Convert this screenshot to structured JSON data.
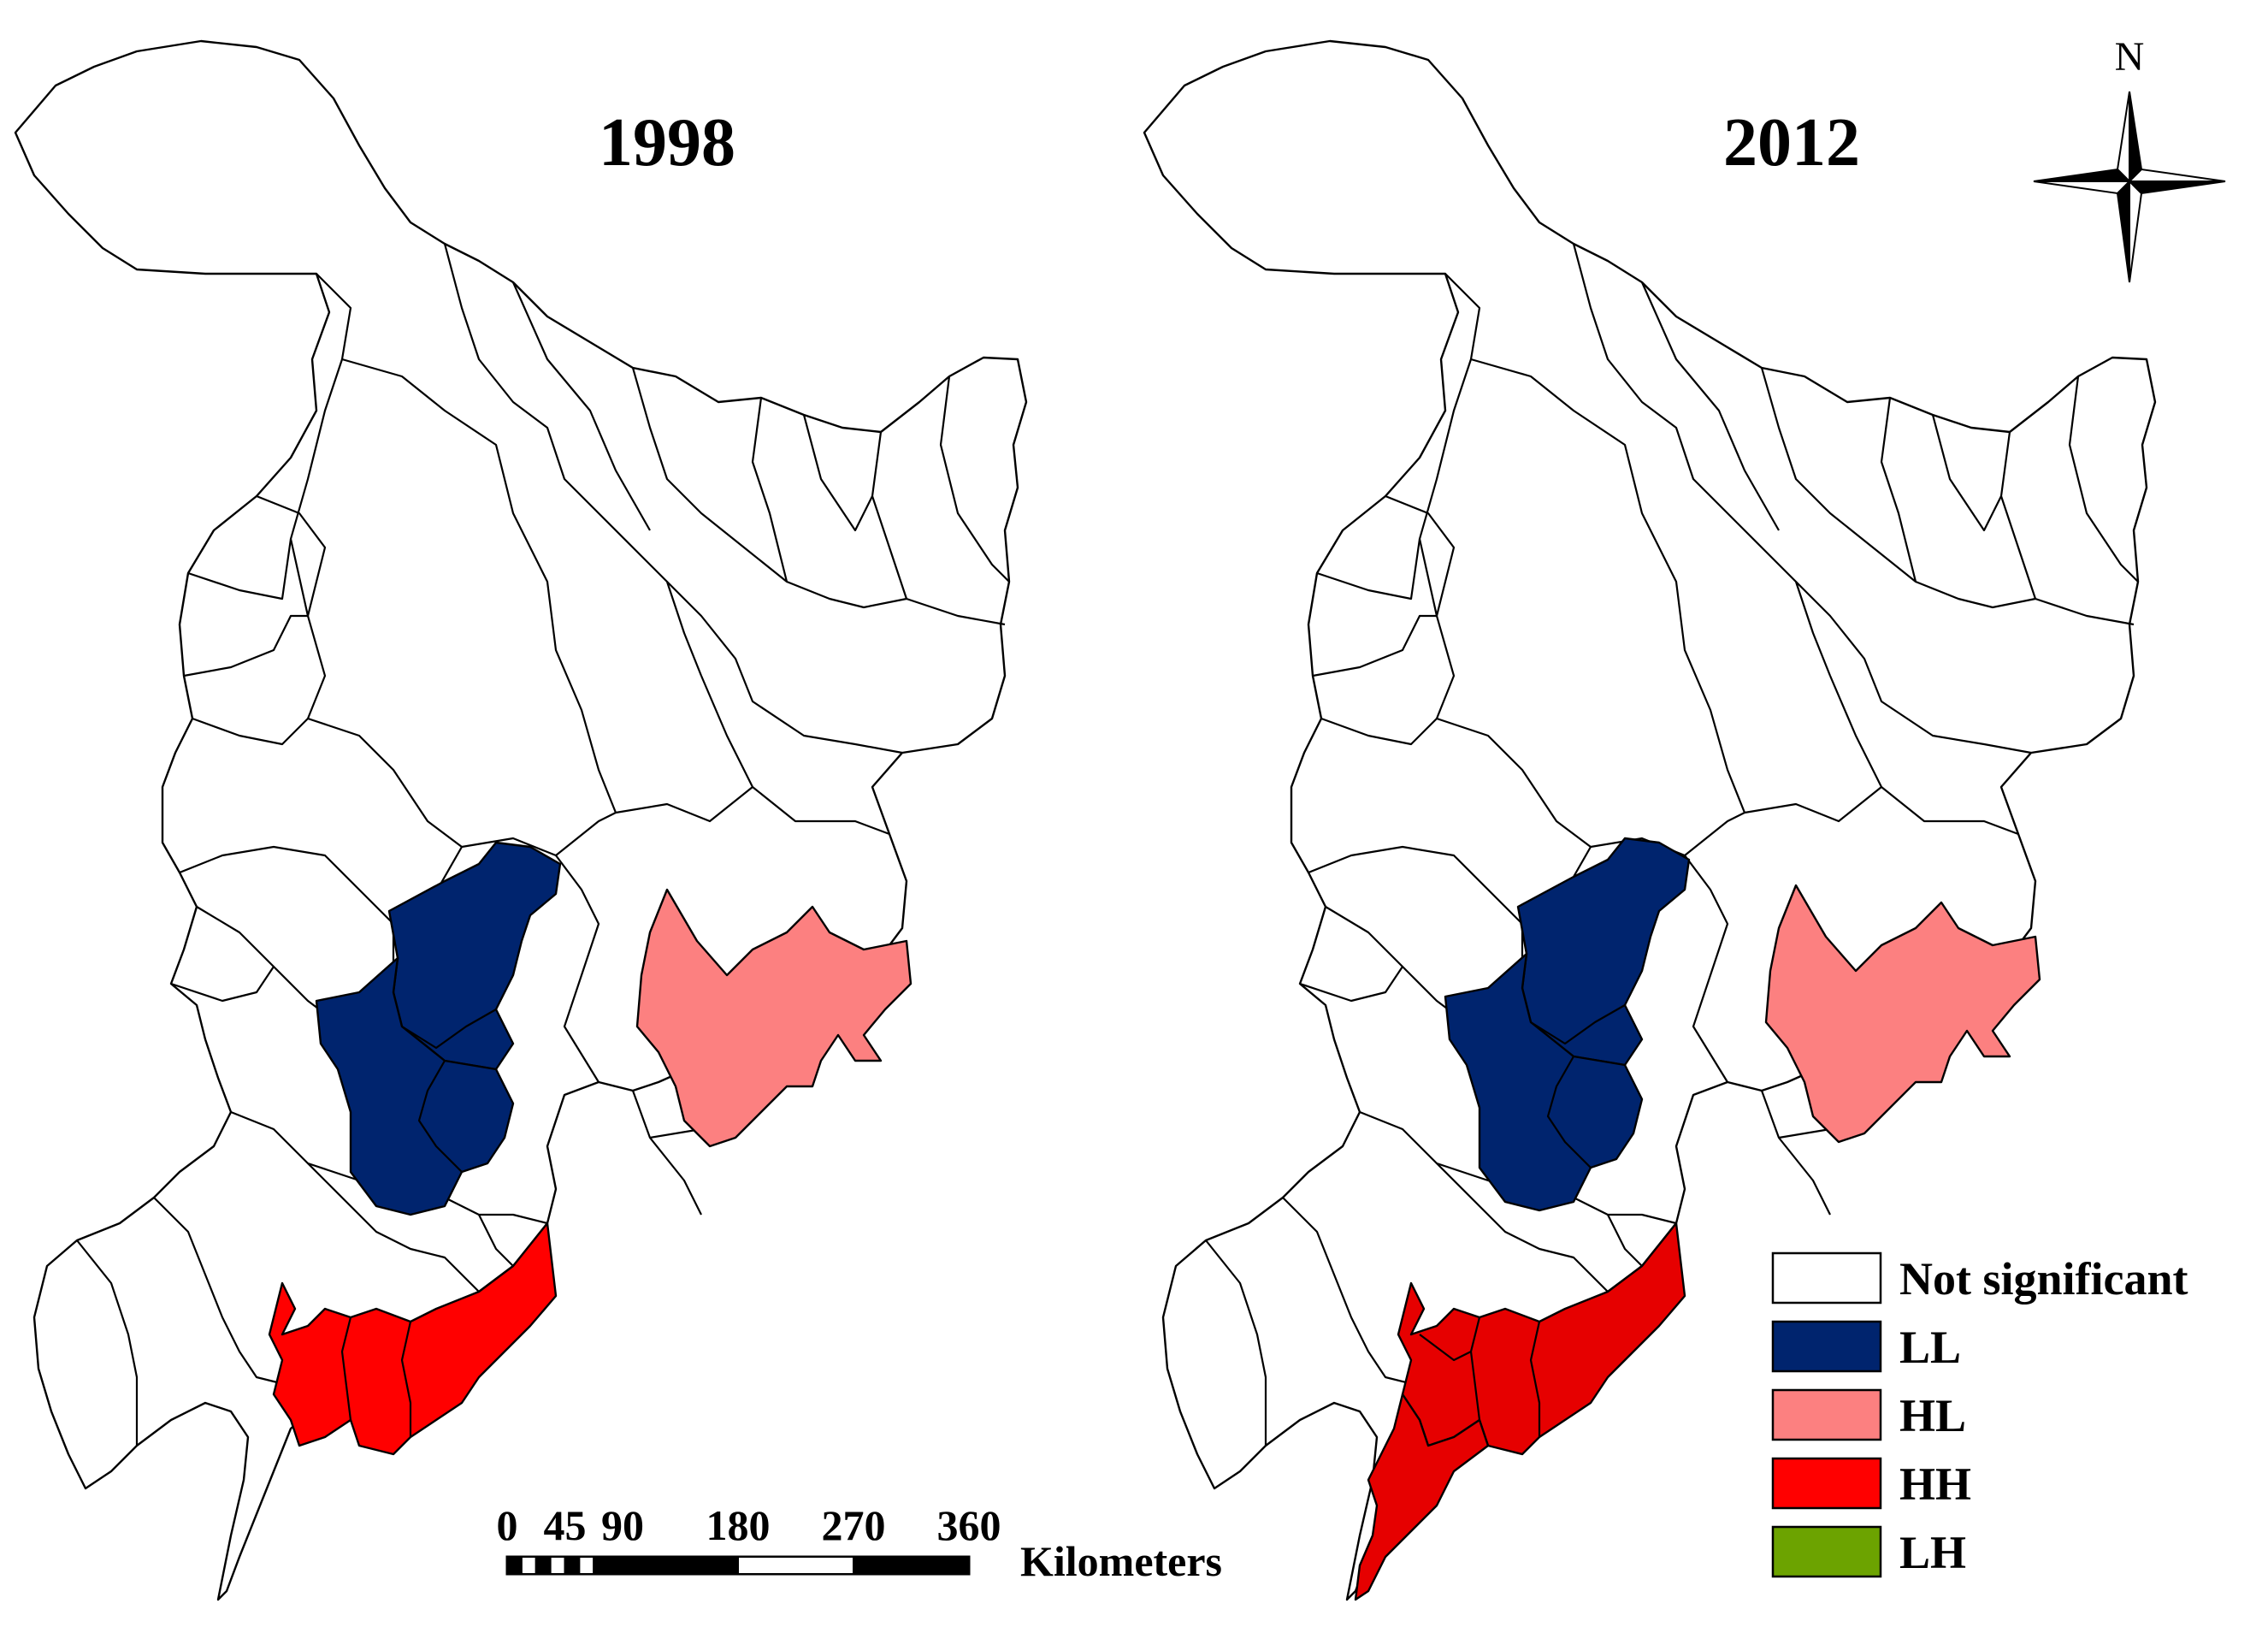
{
  "colors": {
    "not_significant": "#ffffff",
    "LL": "#00246e",
    "HL": "#fc8080",
    "HH_1998": "#ff0000",
    "HH_2012": "#e60000",
    "LH": "#6ca300",
    "outline": "#000000"
  },
  "maps": [
    {
      "title": "1998",
      "clusters": {
        "north_block": "LL",
        "south_block": "LL",
        "east_block": "HL",
        "south_coast": "HH",
        "peninsula": "Not significant"
      }
    },
    {
      "title": "2012",
      "clusters": {
        "north_block": "LL",
        "south_block": "LL",
        "east_block": "HL",
        "south_coast": "HH",
        "peninsula": "HH"
      }
    }
  ],
  "north_arrow": {
    "label": "N",
    "icon": "compass-rose-icon"
  },
  "scale_bar": {
    "ticks": [
      "0",
      "45",
      "90",
      "180",
      "270",
      "360"
    ],
    "tick_values": [
      0,
      45,
      90,
      180,
      270,
      360
    ],
    "unit": "Kilometers"
  },
  "legend": {
    "items": [
      {
        "key": "not_significant",
        "label": "Not significant"
      },
      {
        "key": "LL",
        "label": "LL"
      },
      {
        "key": "HL",
        "label": "HL"
      },
      {
        "key": "HH",
        "label": "HH"
      },
      {
        "key": "LH",
        "label": "LH"
      }
    ]
  }
}
